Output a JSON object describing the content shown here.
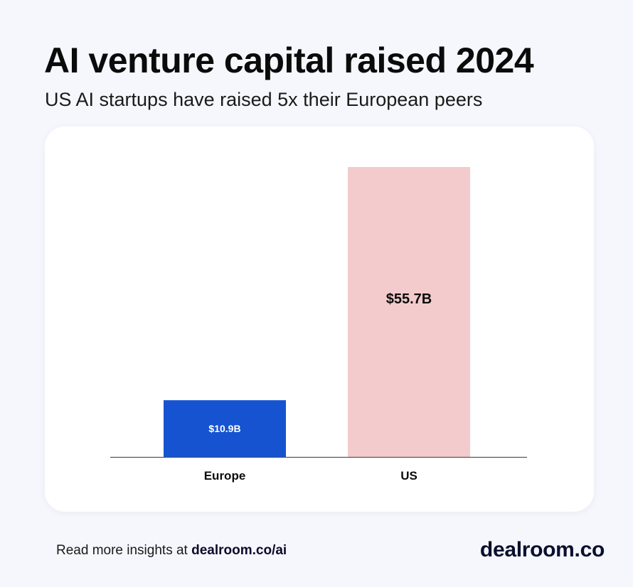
{
  "header": {
    "title": "AI venture capital raised 2024",
    "subtitle": "US AI startups have raised 5x their European peers"
  },
  "chart_data": {
    "type": "bar",
    "categories": [
      "Europe",
      "US"
    ],
    "values": [
      10.9,
      55.7
    ],
    "value_labels": [
      "$10.9B",
      "$55.7B"
    ],
    "bar_colors": [
      "#1553d1",
      "#f4cbcc"
    ],
    "value_label_colors": [
      "#ffffff",
      "#0b0b0b"
    ],
    "ylim": [
      0,
      60
    ],
    "grid": false,
    "legend": "none"
  },
  "footer": {
    "prefix": "Read more insights at ",
    "link_text": "dealroom.co/ai"
  },
  "brand": {
    "logo_text": "dealroom.co"
  }
}
